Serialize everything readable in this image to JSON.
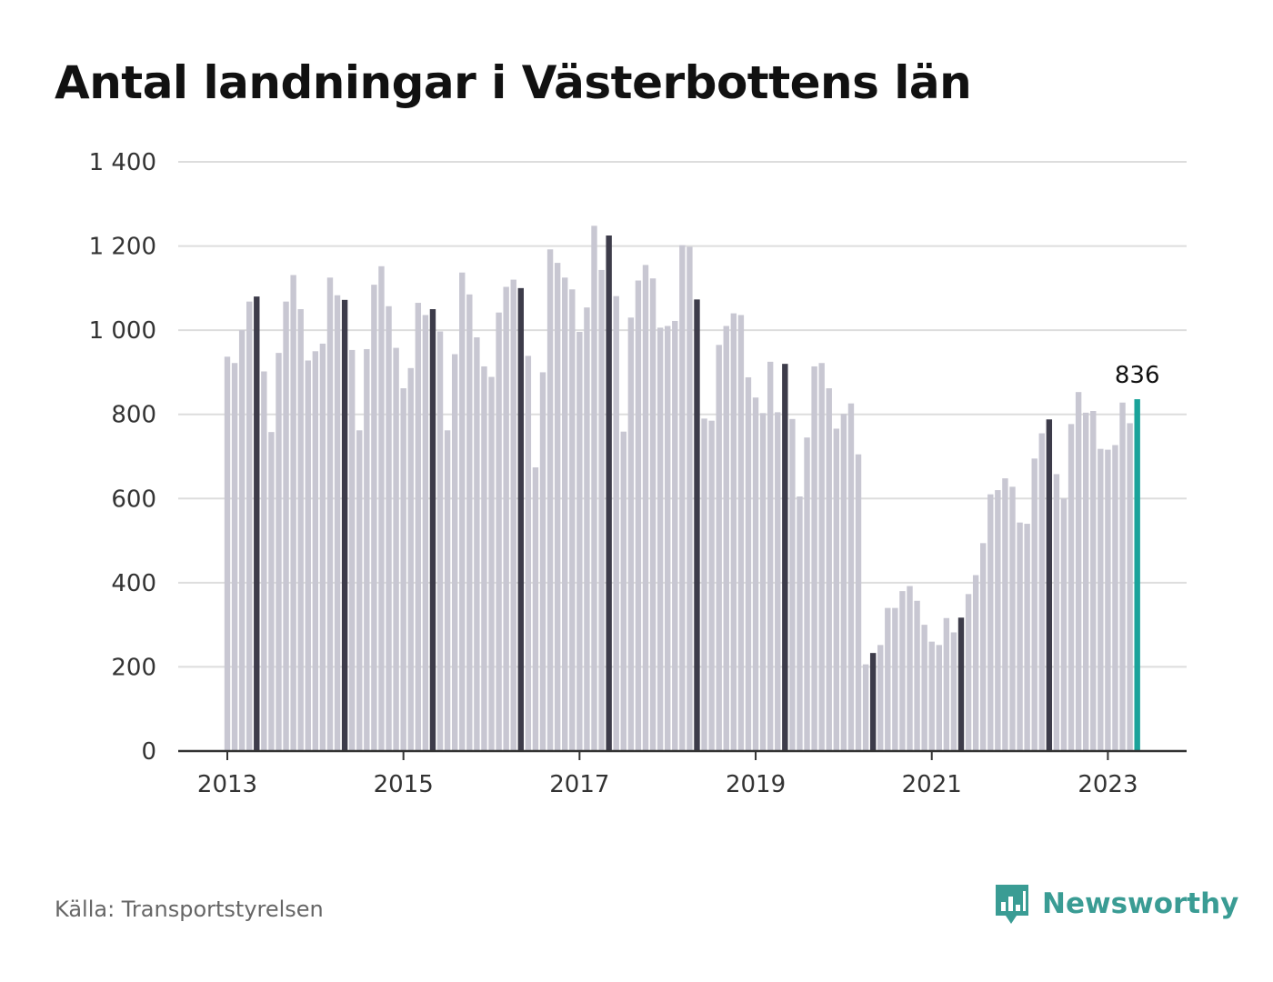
{
  "title": "Antal landningar i Västerbottens län",
  "source": "Källa: Transportstyrelsen",
  "brand": {
    "name": "Newsworthy",
    "icon": "bar-chart-speech-bubble-icon"
  },
  "colors": {
    "regular": "#c8c7d2",
    "highlight": "#3d3c4a",
    "latest": "#1aa39a",
    "grid": "#dddddd",
    "axis": "#333333",
    "brand": "#3a9c94"
  },
  "chart_data": {
    "type": "bar",
    "title": "Antal landningar i Västerbottens län",
    "start": "2013-01",
    "frequency": "monthly",
    "highlight_month": "May",
    "ylim": [
      0,
      1400
    ],
    "yticks": [
      0,
      200,
      400,
      600,
      800,
      1000,
      1200,
      1400
    ],
    "ytick_labels": [
      "0",
      "200",
      "400",
      "600",
      "800",
      "1 000",
      "1 200",
      "1 400"
    ],
    "xtick_labels": [
      "2013",
      "2015",
      "2017",
      "2019",
      "2021",
      "2023"
    ],
    "grid": true,
    "last_value_label": "836",
    "values": [
      937,
      922,
      1000,
      1068,
      1080,
      902,
      758,
      946,
      1068,
      1131,
      1050,
      928,
      950,
      968,
      1125,
      1083,
      1072,
      953,
      762,
      955,
      1108,
      1152,
      1057,
      958,
      862,
      910,
      1065,
      1036,
      1050,
      997,
      762,
      943,
      1137,
      1085,
      983,
      914,
      889,
      1042,
      1103,
      1120,
      1100,
      939,
      674,
      900,
      1192,
      1160,
      1125,
      1097,
      996,
      1054,
      1248,
      1143,
      1225,
      1081,
      759,
      1030,
      1118,
      1155,
      1123,
      1006,
      1010,
      1022,
      1202,
      1198,
      1073,
      790,
      785,
      965,
      1010,
      1040,
      1036,
      888,
      840,
      803,
      925,
      805,
      920,
      789,
      605,
      745,
      914,
      922,
      862,
      766,
      801,
      826,
      705,
      206,
      233,
      252,
      340,
      340,
      380,
      392,
      357,
      300,
      260,
      252,
      316,
      282,
      317,
      373,
      418,
      494,
      610,
      620,
      648,
      628,
      543,
      540,
      695,
      755,
      788,
      658,
      600,
      777,
      853,
      804,
      808,
      718,
      716,
      727,
      828,
      779,
      836
    ]
  }
}
